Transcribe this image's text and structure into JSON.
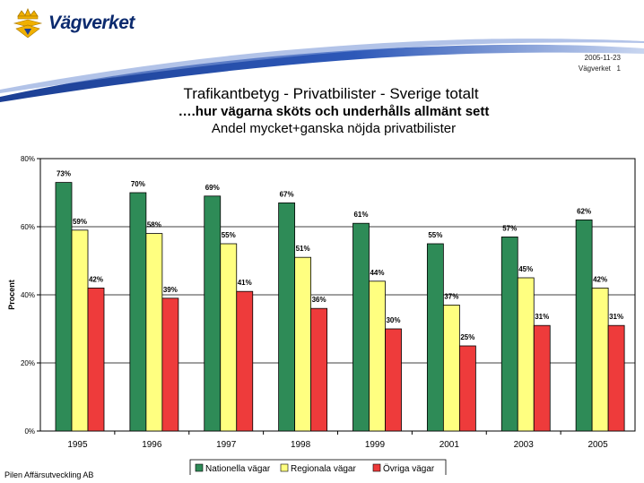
{
  "brand": {
    "name": "Vägverket"
  },
  "slide_meta": {
    "date": "2005-11-23",
    "footer_label": "Vägverket   1"
  },
  "footer_credit": "Pilen Affärsutveckling AB",
  "colors": {
    "header_blue": "#1c3f94",
    "nationella": "#2e8b57",
    "regionala": "#ffff80",
    "ovriga": "#ee3b3b"
  },
  "chart_data": {
    "type": "bar",
    "title": "Trafikantbetyg - Privatbilister - Sverige totalt",
    "subtitle": "….hur vägarna sköts och underhålls allmänt sett",
    "subtitle2": "Andel mycket+ganska nöjda privatbilister",
    "ylabel": "Procent",
    "xlabel": "",
    "ylim": [
      0,
      80
    ],
    "yticks": [
      "0%",
      "20%",
      "40%",
      "60%",
      "80%"
    ],
    "grid": true,
    "legend_position": "bottom",
    "categories": [
      "1995",
      "1996",
      "1997",
      "1998",
      "1999",
      "2001",
      "2003",
      "2005"
    ],
    "series": [
      {
        "name": "Nationella vägar",
        "values": [
          73,
          70,
          69,
          67,
          61,
          55,
          57,
          62
        ]
      },
      {
        "name": "Regionala vägar",
        "values": [
          59,
          58,
          55,
          51,
          44,
          37,
          45,
          42
        ]
      },
      {
        "name": "Övriga vägar",
        "values": [
          42,
          39,
          41,
          36,
          30,
          25,
          31,
          31
        ]
      }
    ]
  }
}
